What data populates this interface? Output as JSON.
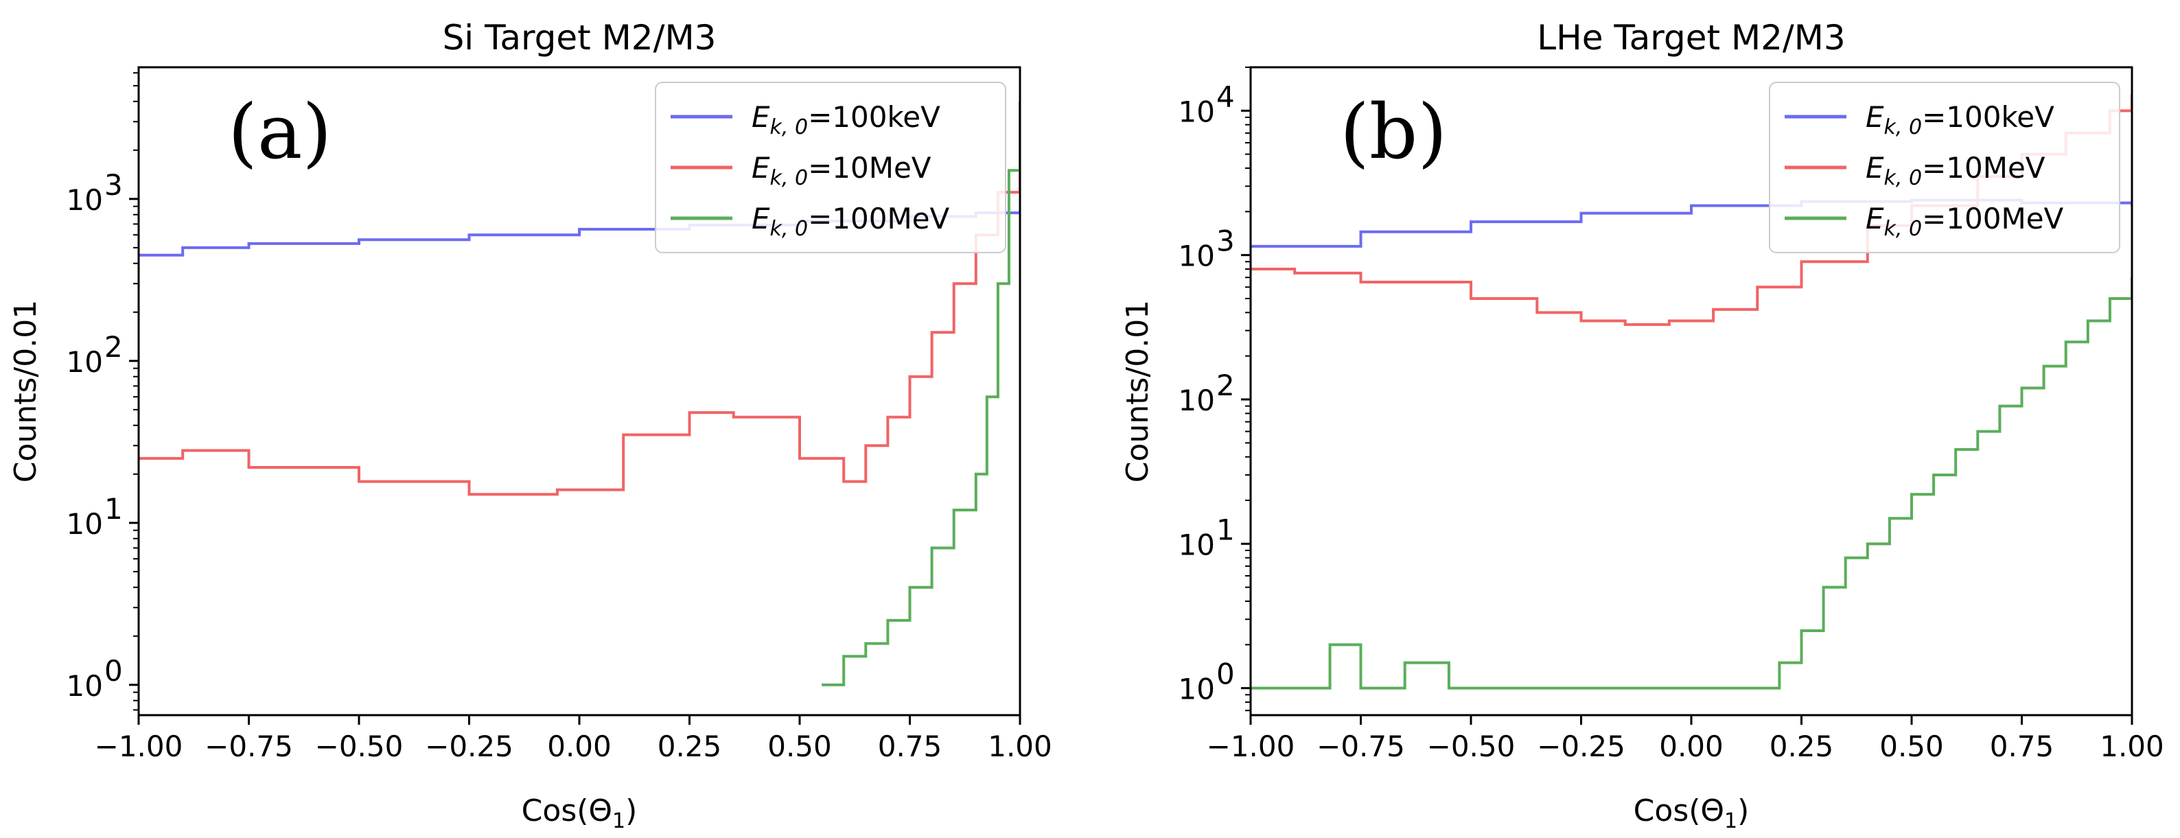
{
  "chart_data": [
    {
      "type": "line",
      "title": "Si Target M2/M3",
      "panel_label": "(a)",
      "xlabel": "Cos(Θ₁)",
      "xlabel_main": "Cos(Θ",
      "xlabel_sub": "1",
      "xlabel_end": ")",
      "ylabel": "Counts/0.01",
      "xlim": [
        -1.0,
        1.0
      ],
      "ylim": [
        0.65,
        6500
      ],
      "yscale": "log",
      "x_ticks": [
        "−1.00",
        "−0.75",
        "−0.50",
        "−0.25",
        "0.00",
        "0.25",
        "0.50",
        "0.75",
        "1.00"
      ],
      "y_ticks": [
        "10",
        "10",
        "10",
        "10"
      ],
      "y_tick_exponents": [
        "0",
        "1",
        "2",
        "3"
      ],
      "legend": {
        "position": "top-right"
      },
      "series": [
        {
          "name": "E_{k,0}=100keV",
          "legend_prefix": "E",
          "legend_sub": "k, 0",
          "legend_suffix": "=100keV",
          "color": "#6b6bf2",
          "x": [
            -1.0,
            -0.9,
            -0.75,
            -0.5,
            -0.25,
            0.0,
            0.25,
            0.5,
            0.75,
            0.9,
            1.0
          ],
          "y": [
            450,
            500,
            530,
            560,
            600,
            650,
            690,
            730,
            780,
            820,
            850
          ]
        },
        {
          "name": "E_{k,0}=10MeV",
          "legend_prefix": "E",
          "legend_sub": "k, 0",
          "legend_suffix": "=10MeV",
          "color": "#f06464",
          "x": [
            -1.0,
            -0.9,
            -0.75,
            -0.5,
            -0.25,
            -0.05,
            0.1,
            0.25,
            0.35,
            0.5,
            0.6,
            0.65,
            0.7,
            0.75,
            0.8,
            0.85,
            0.9,
            0.95,
            1.0
          ],
          "y": [
            25,
            28,
            22,
            18,
            15,
            16,
            35,
            48,
            45,
            25,
            18,
            30,
            45,
            80,
            150,
            300,
            600,
            1100,
            2000
          ]
        },
        {
          "name": "E_{k,0}=100MeV",
          "legend_prefix": "E",
          "legend_sub": "k, 0",
          "legend_suffix": "=100MeV",
          "color": "#5aae5a",
          "x": [
            0.55,
            0.6,
            0.65,
            0.7,
            0.75,
            0.8,
            0.85,
            0.9,
            0.925,
            0.95,
            0.975,
            1.0
          ],
          "y": [
            1,
            1.5,
            1.8,
            2.5,
            4,
            7,
            12,
            20,
            60,
            300,
            1500,
            4000
          ]
        }
      ]
    },
    {
      "type": "line",
      "title": "LHe Target M2/M3",
      "panel_label": "(b)",
      "xlabel": "Cos(Θ₁)",
      "xlabel_main": "Cos(Θ",
      "xlabel_sub": "1",
      "xlabel_end": ")",
      "ylabel": "Counts/0.01",
      "xlim": [
        -1.0,
        1.0
      ],
      "ylim": [
        0.65,
        20000
      ],
      "yscale": "log",
      "x_ticks": [
        "−1.00",
        "−0.75",
        "−0.50",
        "−0.25",
        "0.00",
        "0.25",
        "0.50",
        "0.75",
        "1.00"
      ],
      "y_ticks": [
        "10",
        "10",
        "10",
        "10",
        "10"
      ],
      "y_tick_exponents": [
        "0",
        "1",
        "2",
        "3",
        "4"
      ],
      "legend": {
        "position": "top-right"
      },
      "series": [
        {
          "name": "E_{k,0}=100keV",
          "legend_prefix": "E",
          "legend_sub": "k, 0",
          "legend_suffix": "=100keV",
          "color": "#6b6bf2",
          "x": [
            -1.0,
            -0.75,
            -0.5,
            -0.25,
            0.0,
            0.25,
            0.5,
            0.75,
            1.0
          ],
          "y": [
            1150,
            1450,
            1700,
            1950,
            2200,
            2350,
            2400,
            2300,
            2200
          ]
        },
        {
          "name": "E_{k,0}=10MeV",
          "legend_prefix": "E",
          "legend_sub": "k, 0",
          "legend_suffix": "=10MeV",
          "color": "#f06464",
          "x": [
            -1.0,
            -0.9,
            -0.75,
            -0.5,
            -0.35,
            -0.25,
            -0.15,
            -0.05,
            0.05,
            0.15,
            0.25,
            0.4,
            0.5,
            0.65,
            0.75,
            0.85,
            0.95,
            1.0
          ],
          "y": [
            800,
            750,
            650,
            500,
            400,
            350,
            330,
            350,
            420,
            600,
            900,
            1600,
            2200,
            3500,
            5000,
            7000,
            10000,
            13000
          ]
        },
        {
          "name": "E_{k,0}=100MeV",
          "legend_prefix": "E",
          "legend_sub": "k, 0",
          "legend_suffix": "=100MeV",
          "color": "#5aae5a",
          "x": [
            -1.0,
            -0.9,
            -0.82,
            -0.75,
            -0.65,
            -0.55,
            -0.45,
            -0.35,
            -0.25,
            -0.15,
            -0.05,
            0.05,
            0.15,
            0.2,
            0.25,
            0.3,
            0.35,
            0.4,
            0.45,
            0.5,
            0.55,
            0.6,
            0.65,
            0.7,
            0.75,
            0.8,
            0.85,
            0.9,
            0.95,
            1.0
          ],
          "y": [
            1,
            1,
            2,
            1,
            1.5,
            1,
            1,
            1,
            1,
            1,
            1,
            1,
            1,
            1.5,
            2.5,
            5,
            8,
            10,
            15,
            22,
            30,
            45,
            60,
            90,
            120,
            170,
            250,
            350,
            500,
            700
          ]
        }
      ]
    }
  ]
}
